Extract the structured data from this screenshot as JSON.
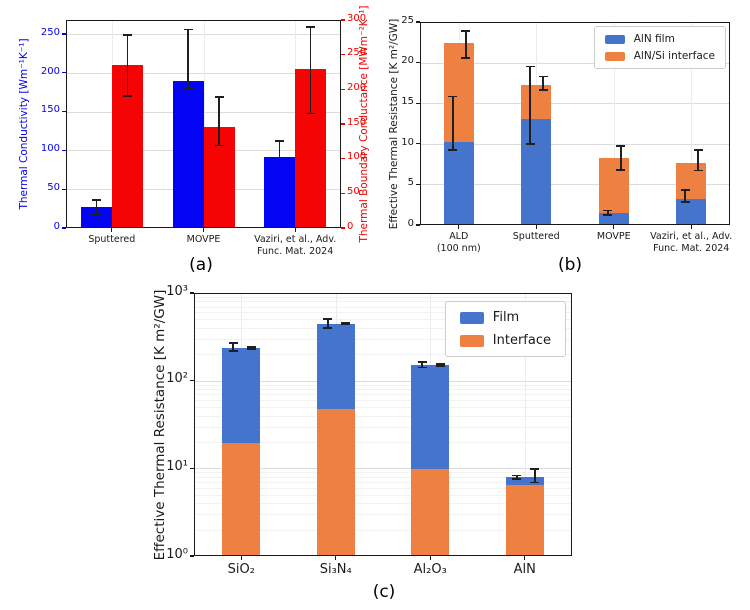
{
  "colors": {
    "pure_blue": "#0404f5",
    "pure_red": "#f50404",
    "muted_blue": "#4474cb",
    "muted_orange": "#ee8142",
    "grid": "#dcdcdc",
    "frame": "#1a1a1a",
    "error_bar": "#1f1f1f"
  },
  "chart_data": [
    {
      "id": "a",
      "caption": "(a)",
      "type": "bar",
      "grouped": true,
      "categories": [
        "Sputtered",
        "MOVPE",
        "Vaziri, et al., Adv.\nFunc. Mat. 2024"
      ],
      "axes": {
        "left": {
          "label": "Thermal Conductivity [Wm⁻¹K⁻¹]",
          "color": "#0202f0",
          "ticks": [
            0,
            50,
            100,
            150,
            200,
            250
          ],
          "max": 268
        },
        "right": {
          "label": "Thermal Boundary Conductance [MWm⁻²K⁻¹]",
          "color": "#f00202",
          "ticks": [
            0,
            50,
            100,
            150,
            200,
            250,
            300
          ],
          "max": 300
        }
      },
      "series": [
        {
          "key": "thermal-conductivity",
          "name": "Thermal Conductivity",
          "axis": "left",
          "color": "#0404f5",
          "values": [
            27,
            190,
            92
          ],
          "err_low": [
            18,
            180,
            73
          ],
          "err_high": [
            36,
            256,
            112
          ]
        },
        {
          "key": "thermal-boundary-conductance",
          "name": "Thermal Boundary Conductance",
          "axis": "right",
          "color": "#f50404",
          "values": [
            235,
            145,
            230
          ],
          "err_low": [
            190,
            119,
            165
          ],
          "err_high": [
            278,
            189,
            290
          ]
        }
      ]
    },
    {
      "id": "b",
      "caption": "(b)",
      "type": "stacked-bar",
      "categories": [
        "ALD\n(100 nm)",
        "Sputtered",
        "MOVPE",
        "Vaziri, et al., Adv.\nFunc. Mat. 2024"
      ],
      "ylabel": "Effective Thermal Resistance [K m²/GW]",
      "ylim": [
        0,
        25
      ],
      "yticks": [
        0,
        5,
        10,
        15,
        20,
        25
      ],
      "legend": [
        {
          "key": "aln-film",
          "label": "AlN film",
          "color": "#4474cb"
        },
        {
          "key": "aln-si-interface",
          "label": "AlN/Si interface",
          "color": "#ee8142"
        }
      ],
      "series": [
        {
          "key": "aln-film",
          "name": "AlN film",
          "color": "#4474cb",
          "values": [
            10.2,
            13.0,
            1.5,
            3.2
          ]
        },
        {
          "key": "aln-si-interface",
          "name": "AlN/Si interface",
          "color": "#ee8142",
          "values": [
            12.2,
            4.3,
            6.8,
            4.4
          ]
        }
      ],
      "totals": [
        22.4,
        17.3,
        8.3,
        7.6
      ],
      "error_bars": [
        {
          "key": "film-error",
          "low": [
            9.2,
            10.0,
            1.2,
            2.8
          ],
          "high": [
            15.8,
            19.5,
            1.8,
            4.3
          ]
        },
        {
          "key": "total-error",
          "low": [
            20.6,
            16.6,
            6.8,
            6.7
          ],
          "high": [
            23.9,
            18.3,
            9.7,
            9.2
          ]
        }
      ]
    },
    {
      "id": "c",
      "caption": "(c)",
      "type": "stacked-bar",
      "log": true,
      "categories": [
        "SiO₂",
        "Si₃N₄",
        "Al₂O₃",
        "AlN"
      ],
      "ylabel": "Effective Thermal Resistance [K m²/GW]",
      "ylim": [
        1,
        1000
      ],
      "yticks": [
        1,
        10,
        100,
        1000
      ],
      "ytick_labels": [
        "10⁰",
        "10¹",
        "10²",
        "10³"
      ],
      "legend": [
        {
          "key": "film",
          "label": "Film",
          "color": "#4474cb"
        },
        {
          "key": "interface",
          "label": "Interface",
          "color": "#ee8142"
        }
      ],
      "series": [
        {
          "key": "interface",
          "name": "Interface",
          "color": "#ee8142",
          "values": [
            19.5,
            48,
            9.8,
            6.4
          ]
        },
        {
          "key": "film",
          "name": "Film",
          "color": "#4474cb",
          "values": [
            215.5,
            400,
            141.2,
            1.5
          ]
        }
      ],
      "totals": [
        235,
        448,
        151,
        7.9
      ],
      "error_bars": [
        {
          "key": "total-error",
          "low": [
            218,
            400,
            142,
            7.6
          ],
          "high": [
            268,
            507,
            164,
            8.3
          ]
        },
        {
          "key": "secondary-error",
          "low": [
            231,
            436,
            147,
            6.9
          ],
          "high": [
            243,
            458,
            155,
            9.8
          ]
        }
      ]
    }
  ]
}
